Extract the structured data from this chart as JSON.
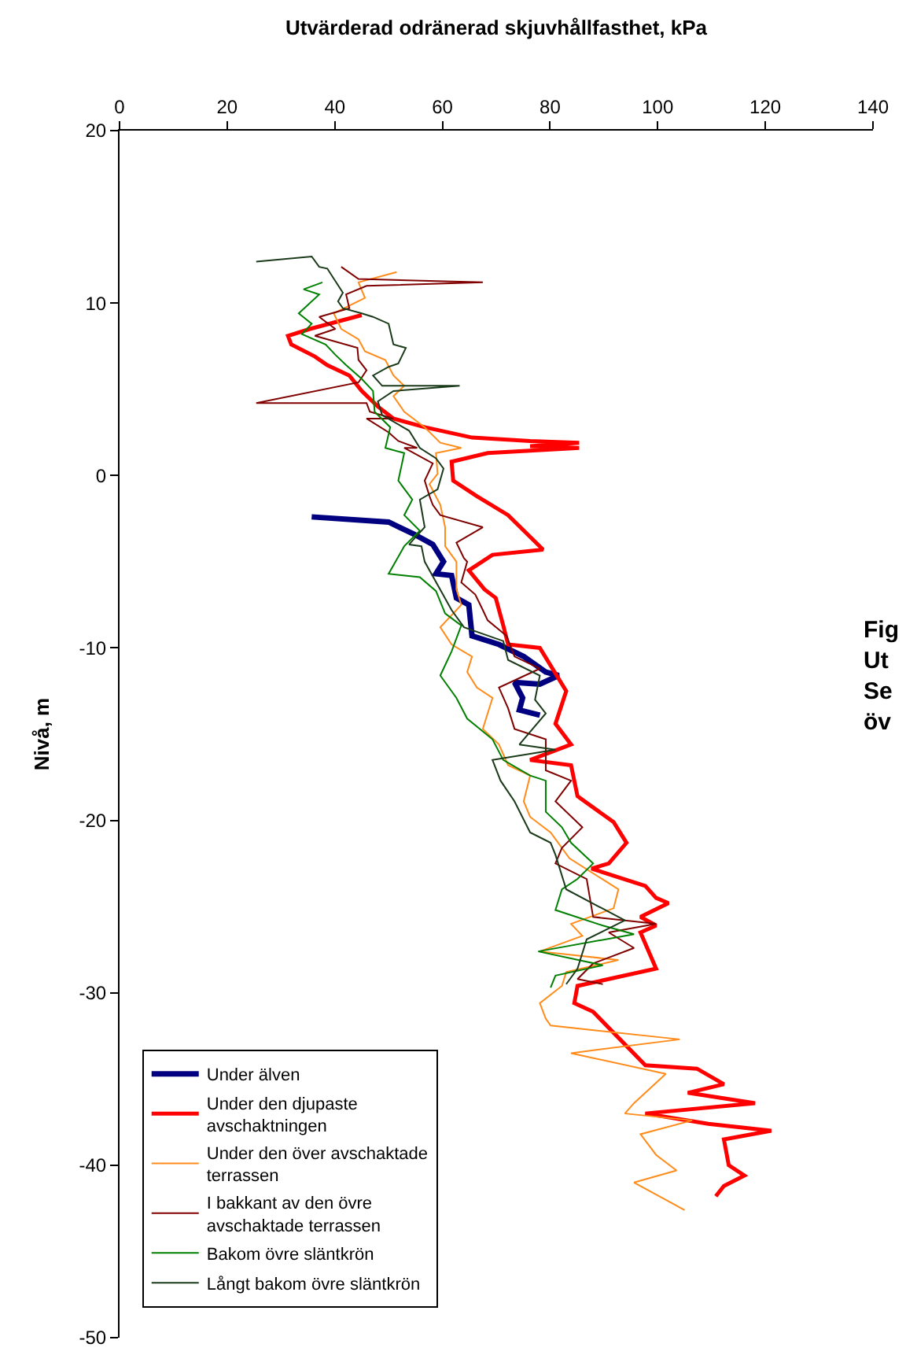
{
  "chart_data": {
    "type": "line",
    "title": "Utvärderad odränerad skjuvhållfasthet, kPa",
    "ylabel": "Nivå, m",
    "xlim": [
      0,
      140
    ],
    "xticks": [
      0,
      20,
      40,
      60,
      80,
      100,
      120,
      140
    ],
    "ylim": [
      -50,
      20
    ],
    "yticks": [
      -50,
      -40,
      -30,
      -20,
      -10,
      0,
      10,
      20
    ],
    "grid": false,
    "legend": "bottom left",
    "marker": "none",
    "line_style": "solid",
    "annotations": [
      "Fig\nUt\nSe\növ"
    ],
    "series": [
      {
        "name": "Under älven",
        "color": "#000080",
        "x": [
          35.7,
          50.0,
          54.7,
          58.2,
          60.2,
          58.8,
          61.7,
          62.6,
          64.9,
          65.5,
          70.5,
          75.1,
          79.2,
          81.6,
          78.1,
          73.4,
          74.9,
          74.3,
          78.1
        ],
        "values": [
          -2.4,
          -2.7,
          -3.4,
          -4.0,
          -5.0,
          -5.7,
          -5.8,
          -7.1,
          -7.5,
          -9.3,
          -9.8,
          -10.5,
          -11.4,
          -11.6,
          -12.1,
          -12.0,
          -12.9,
          -13.6,
          -13.9
        ]
      },
      {
        "name": "Under den djupaste avschaktningen",
        "color": "#ff0000",
        "x": [
          45.0,
          35.4,
          31.3,
          31.9,
          36.3,
          38.6,
          42.7,
          45.0,
          48.0,
          50.9,
          56.7,
          65.5,
          76.3,
          85.4,
          76.3,
          85.4,
          68.4,
          61.7,
          62.0,
          66.4,
          72.2,
          78.7,
          69.3,
          64.9,
          67.8,
          69.9,
          71.3,
          72.2,
          78.1,
          83.0,
          81.0,
          83.9,
          76.3,
          83.9,
          85.1,
          91.8,
          94.2,
          90.9,
          87.7,
          97.7,
          99.7,
          102.0,
          96.8,
          99.7,
          96.8,
          99.7,
          85.1,
          84.5,
          88.0,
          97.7,
          107.3,
          112.3,
          105.6,
          118.1,
          97.7,
          109.4,
          121.1,
          112.3,
          113.2,
          116.1,
          112.3,
          110.8
        ],
        "values": [
          9.3,
          8.5,
          8.1,
          7.6,
          6.9,
          6.4,
          5.8,
          4.9,
          4.0,
          3.3,
          2.8,
          2.2,
          2.0,
          1.9,
          1.7,
          1.6,
          1.3,
          0.8,
          -0.3,
          -1.2,
          -2.3,
          -4.3,
          -4.6,
          -5.5,
          -6.6,
          -7.1,
          -8.7,
          -9.8,
          -10.0,
          -12.5,
          -14.4,
          -15.6,
          -16.5,
          -16.8,
          -18.6,
          -20.1,
          -21.3,
          -22.5,
          -22.8,
          -23.8,
          -24.5,
          -24.8,
          -25.6,
          -26.1,
          -26.5,
          -28.6,
          -29.6,
          -30.6,
          -31.1,
          -34.2,
          -34.4,
          -35.3,
          -35.8,
          -36.4,
          -37.0,
          -37.6,
          -38.0,
          -38.5,
          -40.0,
          -40.6,
          -41.2,
          -41.8
        ]
      },
      {
        "name": "Under den över avschaktade terrassen",
        "color": "#ff8c1a",
        "x": [
          51.5,
          44.4,
          45.6,
          39.8,
          41.2,
          44.4,
          45.6,
          49.4,
          50.9,
          52.9,
          50.9,
          52.9,
          56.7,
          59.6,
          63.5,
          58.8,
          59.1,
          57.6,
          59.6,
          60.5,
          60.5,
          62.6,
          62.6,
          63.5,
          59.6,
          61.7,
          65.5,
          64.6,
          66.4,
          69.3,
          67.5,
          70.5,
          72.2,
          76.3,
          75.1,
          76.3,
          80.1,
          83.6,
          92.7,
          91.8,
          83.9,
          86.0,
          78.1,
          92.7,
          83.0,
          82.2,
          78.1,
          79.2,
          80.1,
          104.1,
          83.9,
          101.5,
          95.6,
          93.9,
          106.4,
          96.8,
          99.7,
          103.5,
          95.6,
          105.0
        ],
        "values": [
          11.8,
          11.2,
          10.3,
          9.4,
          8.5,
          7.9,
          7.2,
          6.7,
          5.8,
          5.2,
          4.6,
          3.7,
          2.8,
          1.9,
          1.6,
          1.3,
          0.1,
          -0.5,
          -1.7,
          -3.0,
          -4.1,
          -5.0,
          -6.6,
          -7.5,
          -8.8,
          -9.8,
          -10.5,
          -11.4,
          -12.3,
          -12.9,
          -14.7,
          -15.6,
          -16.8,
          -17.4,
          -18.9,
          -19.8,
          -20.7,
          -22.2,
          -24.0,
          -25.1,
          -26.0,
          -26.7,
          -27.6,
          -28.1,
          -28.8,
          -29.6,
          -30.6,
          -31.5,
          -31.9,
          -32.7,
          -33.5,
          -34.7,
          -36.4,
          -37.0,
          -37.4,
          -38.2,
          -39.4,
          -40.3,
          -41.0,
          -42.6
        ]
      },
      {
        "name": "I bakkant av den övre avschaktade terrassen",
        "color": "#800000",
        "x": [
          41.2,
          44.4,
          67.5,
          45.9,
          42.1,
          42.7,
          37.1,
          40.1,
          36.3,
          44.2,
          44.4,
          45.9,
          44.4,
          25.4,
          45.9,
          46.5,
          50.9,
          45.9,
          50.0,
          51.8,
          55.3,
          52.9,
          58.2,
          56.7,
          57.6,
          58.2,
          59.6,
          67.5,
          62.6,
          64.0,
          64.6,
          63.5,
          66.1,
          67.5,
          68.4,
          71.9,
          73.4,
          78.1,
          70.5,
          72.2,
          73.4,
          79.2,
          79.2,
          83.9,
          81.0,
          86.0,
          82.2,
          81.0,
          86.8,
          88.0,
          99.7,
          90.9,
          95.6,
          88.0,
          85.1,
          89.8
        ],
        "values": [
          12.1,
          11.4,
          11.2,
          11.0,
          10.5,
          9.7,
          9.2,
          8.5,
          8.1,
          7.4,
          6.7,
          6.1,
          5.4,
          4.2,
          4.2,
          3.7,
          3.3,
          3.3,
          2.5,
          2.0,
          1.6,
          1.6,
          0.7,
          -0.3,
          -1.2,
          -1.7,
          -2.3,
          -3.0,
          -3.9,
          -4.8,
          -5.0,
          -6.2,
          -6.9,
          -7.8,
          -8.4,
          -9.3,
          -10.5,
          -11.2,
          -12.3,
          -13.5,
          -14.7,
          -15.3,
          -17.1,
          -17.7,
          -18.9,
          -20.4,
          -21.6,
          -22.5,
          -23.4,
          -25.6,
          -26.0,
          -26.5,
          -27.4,
          -28.3,
          -29.2,
          -29.5
        ]
      },
      {
        "name": "Bakom övre släntkrön",
        "color": "#008000",
        "x": [
          37.7,
          34.2,
          37.1,
          33.3,
          35.7,
          33.9,
          38.3,
          40.1,
          42.1,
          45.0,
          47.1,
          47.4,
          50.3,
          49.4,
          52.9,
          51.8,
          54.4,
          52.9,
          55.8,
          52.9,
          50.0,
          55.8,
          58.8,
          60.5,
          63.5,
          61.7,
          59.6,
          62.6,
          64.6,
          69.3,
          71.3,
          76.3,
          79.2,
          79.2,
          82.2,
          83.9,
          88.0,
          85.1,
          82.2,
          81.0,
          89.8,
          95.6,
          77.8,
          89.8,
          81.0,
          80.1
        ],
        "values": [
          11.2,
          10.8,
          10.5,
          9.4,
          8.8,
          8.2,
          7.6,
          7.0,
          6.4,
          5.6,
          4.9,
          3.7,
          2.8,
          1.6,
          1.3,
          -0.3,
          -1.4,
          -2.3,
          -3.2,
          -4.1,
          -5.7,
          -5.9,
          -6.7,
          -8.0,
          -8.7,
          -10.2,
          -11.6,
          -12.9,
          -14.1,
          -15.3,
          -16.5,
          -17.4,
          -17.7,
          -19.5,
          -20.4,
          -21.3,
          -22.5,
          -23.4,
          -24.0,
          -25.2,
          -26.1,
          -26.6,
          -27.6,
          -28.4,
          -29.0,
          -29.7
        ]
      },
      {
        "name": "Långt bakom övre släntkrön",
        "color": "#1a3a1a",
        "x": [
          25.4,
          35.7,
          37.1,
          38.6,
          41.5,
          40.6,
          41.5,
          45.0,
          47.1,
          50.0,
          50.9,
          53.2,
          51.8,
          50.0,
          47.1,
          48.8,
          63.2,
          50.9,
          48.0,
          48.8,
          53.8,
          55.8,
          58.8,
          60.2,
          59.1,
          55.8,
          56.7,
          53.8,
          56.1,
          56.7,
          61.7,
          64.0,
          71.3,
          72.2,
          78.1,
          77.2,
          79.2,
          74.3,
          81.0,
          69.3,
          70.8,
          73.4,
          76.3,
          80.1,
          81.0,
          83.0,
          93.9,
          86.8,
          85.1,
          83.0
        ],
        "values": [
          12.4,
          12.7,
          12.1,
          12.0,
          10.6,
          10.1,
          9.7,
          9.4,
          9.2,
          8.8,
          7.6,
          7.4,
          6.5,
          6.3,
          5.8,
          5.2,
          5.2,
          4.9,
          4.3,
          3.5,
          2.6,
          1.6,
          1.0,
          0.4,
          -0.8,
          -1.4,
          -3.0,
          -4.0,
          -4.1,
          -5.0,
          -7.8,
          -8.8,
          -9.6,
          -10.7,
          -11.6,
          -13.0,
          -13.8,
          -15.6,
          -15.9,
          -16.5,
          -17.7,
          -18.9,
          -20.7,
          -21.3,
          -22.0,
          -24.0,
          -25.8,
          -26.9,
          -28.6,
          -29.5
        ]
      }
    ]
  }
}
